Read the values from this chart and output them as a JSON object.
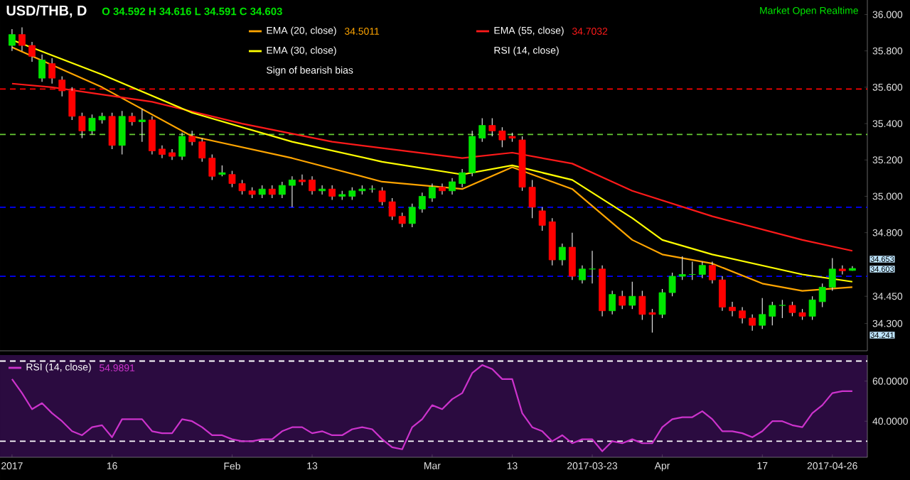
{
  "chart_data": [
    {
      "type": "candlestick",
      "title": "USD/THB, D",
      "subtitle": "O 34.592 H 34.616 L 34.591 C 34.603",
      "legend": "top",
      "tick_labels": "y",
      "categories": [
        null,
        null,
        null,
        null,
        null,
        null,
        null,
        null,
        null,
        null,
        null,
        null,
        null,
        null,
        null,
        null,
        null,
        null,
        null,
        null,
        null,
        null,
        null,
        null,
        null,
        null,
        null,
        null,
        null,
        null,
        null,
        null,
        null,
        null,
        null,
        null,
        null,
        null,
        null,
        null,
        null,
        null,
        null,
        null,
        null,
        null,
        null,
        null,
        null,
        null,
        null,
        null,
        null,
        null,
        null,
        null,
        null,
        null,
        null,
        null,
        null,
        null,
        null,
        null,
        null,
        null,
        null,
        null,
        null,
        null,
        null,
        null,
        null,
        null,
        null,
        null,
        null,
        null,
        null,
        null,
        null,
        null,
        null,
        null,
        null
      ],
      "ohlc": [
        [
          35.83,
          35.92,
          35.8,
          35.89
        ],
        [
          35.89,
          35.93,
          35.8,
          35.83
        ],
        [
          35.83,
          35.85,
          35.74,
          35.77
        ],
        [
          35.65,
          35.78,
          35.63,
          35.75
        ],
        [
          35.73,
          35.76,
          35.62,
          35.65
        ],
        [
          35.64,
          35.66,
          35.55,
          35.58
        ],
        [
          35.58,
          35.6,
          35.42,
          35.44
        ],
        [
          35.44,
          35.46,
          35.32,
          35.36
        ],
        [
          35.36,
          35.45,
          35.34,
          35.43
        ],
        [
          35.42,
          35.46,
          35.4,
          35.44
        ],
        [
          35.44,
          35.46,
          35.26,
          35.28
        ],
        [
          35.28,
          35.47,
          35.23,
          35.44
        ],
        [
          35.44,
          35.46,
          35.39,
          35.41
        ],
        [
          35.41,
          35.48,
          35.3,
          35.42
        ],
        [
          35.42,
          35.44,
          35.23,
          35.25
        ],
        [
          35.26,
          35.28,
          35.21,
          35.23
        ],
        [
          35.24,
          35.26,
          35.2,
          35.22
        ],
        [
          35.22,
          35.35,
          35.2,
          35.33
        ],
        [
          35.33,
          35.36,
          35.28,
          35.3
        ],
        [
          35.3,
          35.32,
          35.19,
          35.21
        ],
        [
          35.21,
          35.23,
          35.09,
          35.11
        ],
        [
          35.12,
          35.17,
          35.11,
          35.13
        ],
        [
          35.12,
          35.14,
          35.05,
          35.07
        ],
        [
          35.07,
          35.09,
          35.01,
          35.03
        ],
        [
          35.03,
          35.05,
          34.99,
          35.01
        ],
        [
          35.01,
          35.06,
          34.99,
          35.04
        ],
        [
          35.04,
          35.06,
          34.99,
          35.01
        ],
        [
          35.01,
          35.08,
          34.99,
          35.06
        ],
        [
          35.06,
          35.11,
          34.94,
          35.09
        ],
        [
          35.09,
          35.12,
          35.06,
          35.08
        ],
        [
          35.09,
          35.11,
          35.01,
          35.03
        ],
        [
          35.03,
          35.06,
          35.01,
          35.04
        ],
        [
          35.04,
          35.06,
          34.98,
          35.0
        ],
        [
          35.0,
          35.03,
          34.98,
          35.01
        ],
        [
          35.0,
          35.05,
          34.98,
          35.03
        ],
        [
          35.03,
          35.06,
          35.01,
          35.04
        ],
        [
          35.04,
          35.06,
          35.02,
          35.04
        ],
        [
          35.03,
          35.05,
          34.95,
          34.97
        ],
        [
          34.97,
          34.99,
          34.87,
          34.89
        ],
        [
          34.89,
          34.91,
          34.83,
          34.85
        ],
        [
          34.85,
          34.96,
          34.83,
          34.94
        ],
        [
          34.93,
          35.02,
          34.91,
          35.0
        ],
        [
          34.99,
          35.07,
          34.97,
          35.05
        ],
        [
          35.05,
          35.07,
          35.01,
          35.03
        ],
        [
          35.03,
          35.1,
          35.01,
          35.08
        ],
        [
          35.07,
          35.15,
          35.05,
          35.13
        ],
        [
          35.13,
          35.36,
          35.11,
          35.33
        ],
        [
          35.32,
          35.43,
          35.3,
          35.39
        ],
        [
          35.39,
          35.43,
          35.33,
          35.36
        ],
        [
          35.36,
          35.38,
          35.27,
          35.31
        ],
        [
          35.33,
          35.35,
          35.3,
          35.32
        ],
        [
          35.31,
          35.33,
          35.03,
          35.05
        ],
        [
          35.05,
          35.09,
          34.88,
          34.94
        ],
        [
          34.92,
          34.94,
          34.81,
          34.84
        ],
        [
          34.86,
          34.88,
          34.62,
          34.65
        ],
        [
          34.65,
          34.74,
          34.62,
          34.72
        ],
        [
          34.72,
          34.8,
          34.54,
          34.56
        ],
        [
          34.54,
          34.62,
          34.52,
          34.6
        ],
        [
          34.6,
          34.7,
          34.52,
          34.6
        ],
        [
          34.6,
          34.62,
          34.34,
          34.37
        ],
        [
          34.37,
          34.48,
          34.35,
          34.46
        ],
        [
          34.45,
          34.48,
          34.38,
          34.4
        ],
        [
          34.4,
          34.53,
          34.38,
          34.45
        ],
        [
          34.45,
          34.48,
          34.32,
          34.35
        ],
        [
          34.36,
          34.38,
          34.25,
          34.35
        ],
        [
          34.35,
          34.49,
          34.33,
          34.47
        ],
        [
          34.47,
          34.58,
          34.45,
          34.56
        ],
        [
          34.56,
          34.67,
          34.54,
          34.57
        ],
        [
          34.57,
          34.64,
          34.54,
          34.57
        ],
        [
          34.57,
          34.64,
          34.55,
          34.62
        ],
        [
          34.62,
          34.64,
          34.52,
          34.54
        ],
        [
          34.54,
          34.56,
          34.37,
          34.39
        ],
        [
          34.39,
          34.42,
          34.34,
          34.37
        ],
        [
          34.37,
          34.39,
          34.3,
          34.33
        ],
        [
          34.33,
          34.35,
          34.26,
          34.29
        ],
        [
          34.29,
          34.44,
          34.27,
          34.35
        ],
        [
          34.34,
          34.42,
          34.29,
          34.4
        ],
        [
          34.4,
          34.43,
          34.33,
          34.4
        ],
        [
          34.4,
          34.42,
          34.34,
          34.36
        ],
        [
          34.36,
          34.38,
          34.32,
          34.34
        ],
        [
          34.34,
          34.45,
          34.32,
          34.43
        ],
        [
          34.42,
          34.52,
          34.39,
          34.5
        ],
        [
          34.5,
          34.66,
          34.48,
          34.6
        ],
        [
          34.6,
          34.62,
          34.57,
          34.59
        ],
        [
          34.592,
          34.616,
          34.591,
          34.603
        ]
      ],
      "series": [
        {
          "type": "line",
          "name": "EMA (20, close)",
          "color": "#ffa500",
          "values": [
            35.82,
            null,
            null,
            null,
            null,
            null,
            null,
            null,
            null,
            35.6,
            null,
            null,
            null,
            null,
            null,
            null,
            null,
            null,
            35.33,
            null,
            null,
            null,
            null,
            null,
            null,
            null,
            null,
            null,
            35.21,
            null,
            null,
            null,
            null,
            null,
            null,
            null,
            null,
            35.08,
            null,
            null,
            null,
            null,
            null,
            null,
            null,
            35.04,
            null,
            null,
            null,
            null,
            35.16,
            null,
            null,
            null,
            null,
            null,
            35.04,
            null,
            null,
            null,
            null,
            null,
            34.76,
            null,
            null,
            34.68,
            null,
            null,
            null,
            null,
            34.63,
            null,
            null,
            null,
            null,
            34.52,
            null,
            null,
            null,
            34.48,
            null,
            null,
            null,
            null,
            34.5
          ]
        },
        {
          "type": "line",
          "name": "EMA (55, close)",
          "color": "#ff1a1a",
          "values": [
            35.62,
            null,
            null,
            null,
            35.6,
            null,
            null,
            null,
            null,
            null,
            null,
            null,
            null,
            null,
            35.52,
            null,
            null,
            null,
            null,
            null,
            null,
            null,
            null,
            35.4,
            null,
            null,
            null,
            null,
            null,
            null,
            null,
            null,
            35.3,
            null,
            null,
            null,
            null,
            null,
            null,
            null,
            null,
            null,
            null,
            null,
            null,
            35.21,
            null,
            null,
            null,
            null,
            35.24,
            null,
            null,
            null,
            null,
            null,
            35.18,
            null,
            null,
            null,
            null,
            null,
            35.03,
            null,
            null,
            null,
            null,
            null,
            null,
            null,
            34.89,
            null,
            null,
            null,
            null,
            null,
            null,
            null,
            null,
            34.76,
            null,
            null,
            null,
            null,
            34.7
          ]
        },
        {
          "type": "line",
          "name": "EMA (30, close)",
          "color": "#ffff00",
          "values": [
            35.86,
            null,
            null,
            null,
            null,
            null,
            null,
            null,
            null,
            35.67,
            null,
            null,
            null,
            null,
            null,
            null,
            null,
            null,
            35.46,
            null,
            null,
            null,
            null,
            null,
            null,
            null,
            null,
            null,
            35.3,
            null,
            null,
            null,
            null,
            null,
            null,
            null,
            null,
            35.19,
            null,
            null,
            null,
            null,
            null,
            null,
            null,
            35.12,
            null,
            null,
            null,
            null,
            35.17,
            null,
            null,
            null,
            null,
            null,
            35.09,
            null,
            null,
            null,
            null,
            null,
            34.88,
            null,
            null,
            34.76,
            null,
            null,
            null,
            null,
            34.68,
            null,
            null,
            null,
            null,
            null,
            null,
            null,
            null,
            34.57,
            null,
            null,
            null,
            null,
            34.53
          ]
        }
      ],
      "ylim": [
        34.15,
        36.08
      ],
      "yticks": [
        {
          "value": 36.0,
          "label": "36.000"
        },
        {
          "value": 35.8,
          "label": "35.800"
        },
        {
          "value": 35.6,
          "label": "35.600"
        },
        {
          "value": 35.4,
          "label": "35.400"
        },
        {
          "value": 35.2,
          "label": "35.200"
        },
        {
          "value": 35.0,
          "label": "35.000"
        },
        {
          "value": 34.8,
          "label": "34.800"
        },
        {
          "value": 34.45,
          "label": "34.450"
        },
        {
          "value": 34.3,
          "label": "34.300"
        }
      ],
      "ref_lines": [
        {
          "axis": "y",
          "value": 35.59,
          "color": "#ff0000",
          "line_style": "dashed"
        },
        {
          "axis": "y",
          "value": 35.34,
          "color": "#66cc33",
          "line_style": "dashed"
        },
        {
          "axis": "y",
          "value": 34.94,
          "color": "#0000ff",
          "line_style": "dashed"
        },
        {
          "axis": "y",
          "value": 34.56,
          "color": "#0000ff",
          "line_style": "dashed"
        }
      ],
      "annotations": [
        "Market Open Realtime",
        "34.5011",
        "34.7032",
        "RSI (14, close)",
        "Sign of bearish bias",
        "34.653",
        "34.603",
        "34.241"
      ]
    },
    {
      "type": "line",
      "legend": "top left",
      "categories": [
        "2017",
        null,
        null,
        null,
        null,
        null,
        null,
        null,
        null,
        null,
        "16",
        null,
        null,
        null,
        null,
        null,
        null,
        null,
        null,
        null,
        null,
        null,
        "Feb",
        null,
        null,
        null,
        null,
        null,
        null,
        null,
        "13",
        null,
        null,
        null,
        null,
        null,
        null,
        null,
        null,
        null,
        null,
        null,
        "Mar",
        null,
        null,
        null,
        null,
        null,
        null,
        null,
        "13",
        null,
        null,
        null,
        null,
        null,
        null,
        null,
        "2017-03-23",
        null,
        null,
        null,
        null,
        null,
        null,
        "Apr",
        null,
        null,
        null,
        null,
        null,
        null,
        null,
        null,
        null,
        "17",
        null,
        null,
        null,
        null,
        null,
        null,
        "2017-04-26",
        null,
        null
      ],
      "series": [
        {
          "name": "RSI (14, close)",
          "color": "#cc33cc",
          "values": [
            61,
            54,
            46,
            49,
            44,
            40,
            35,
            33,
            37,
            38,
            32,
            41,
            41,
            41,
            35,
            34,
            34,
            41,
            40,
            37,
            33,
            33,
            31,
            30,
            30,
            31,
            31,
            35,
            37,
            37,
            34,
            35,
            33,
            33,
            36,
            37,
            36,
            31,
            27,
            26,
            37,
            41,
            48,
            46,
            51,
            54,
            64,
            68,
            66,
            61,
            61,
            44,
            37,
            35,
            30,
            33,
            29,
            31,
            31,
            25,
            30,
            29,
            31,
            29,
            29,
            37,
            41,
            42,
            42,
            45,
            41,
            35,
            35,
            34,
            32,
            35,
            40,
            40,
            38,
            37,
            44,
            48,
            54,
            55,
            55
          ]
        }
      ],
      "ylim": [
        22,
        73
      ],
      "yticks": [
        {
          "value": 60,
          "label": "60.0000"
        },
        {
          "value": 40,
          "label": "40.0000"
        }
      ],
      "ref_lines": [
        {
          "axis": "y",
          "value": 70,
          "color": "#ffffff",
          "line_style": "dashed"
        },
        {
          "axis": "y",
          "value": 30,
          "color": "#ffffff",
          "line_style": "dashed"
        }
      ],
      "annotations": [
        "54.9891"
      ]
    }
  ]
}
